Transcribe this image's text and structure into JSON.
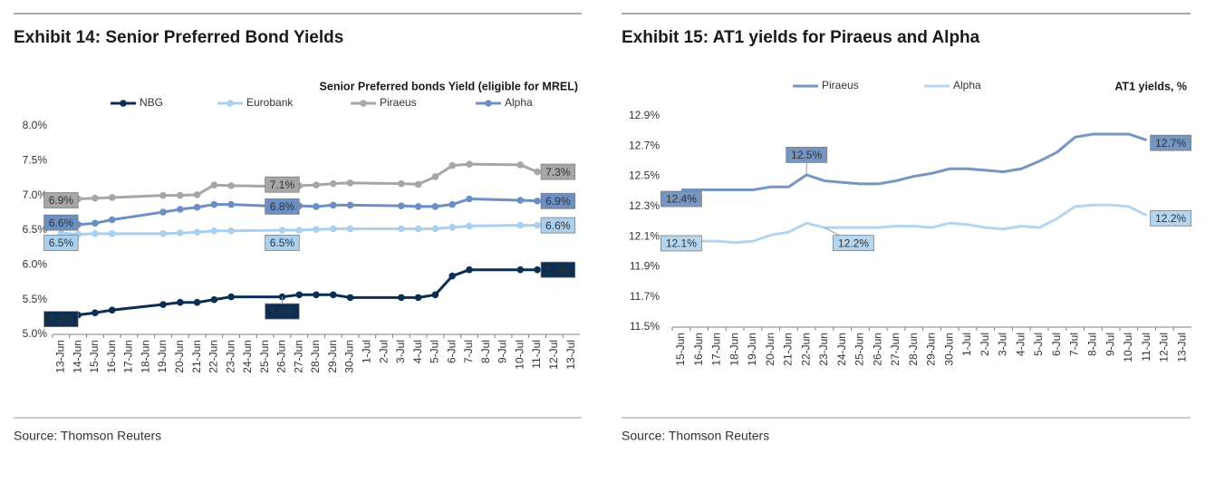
{
  "chart_data": [
    {
      "type": "line",
      "title": "Exhibit 14: Senior Preferred Bond Yields",
      "subtitle": "Senior Preferred bonds Yield (eligible for MREL)",
      "source": "Source: Thomson Reuters",
      "markers": true,
      "x": [
        "13-Jun",
        "14-Jun",
        "15-Jun",
        "16-Jun",
        "19-Jun",
        "20-Jun",
        "21-Jun",
        "22-Jun",
        "23-Jun",
        "26-Jun",
        "27-Jun",
        "28-Jun",
        "29-Jun",
        "30-Jun",
        "3-Jul",
        "4-Jul",
        "5-Jul",
        "6-Jul",
        "7-Jul",
        "10-Jul",
        "11-Jul"
      ],
      "xticks": [
        "13-Jun",
        "14-Jun",
        "15-Jun",
        "16-Jun",
        "17-Jun",
        "18-Jun",
        "19-Jun",
        "20-Jun",
        "21-Jun",
        "22-Jun",
        "23-Jun",
        "24-Jun",
        "25-Jun",
        "26-Jun",
        "27-Jun",
        "28-Jun",
        "29-Jun",
        "30-Jun",
        "1-Jul",
        "2-Jul",
        "3-Jul",
        "4-Jul",
        "5-Jul",
        "6-Jul",
        "7-Jul",
        "8-Jul",
        "9-Jul",
        "10-Jul",
        "11-Jul",
        "12-Jul",
        "13-Jul"
      ],
      "ylim": [
        5,
        8
      ],
      "yticks": [
        {
          "value": 5,
          "label": "5.0%"
        },
        {
          "value": 5.5,
          "label": "5.5%"
        },
        {
          "value": 6,
          "label": "6.0%"
        },
        {
          "value": 6.5,
          "label": "6.5%"
        },
        {
          "value": 7,
          "label": "7.0%"
        },
        {
          "value": 7.5,
          "label": "7.5%"
        },
        {
          "value": 8,
          "label": "8.0%"
        }
      ],
      "series": [
        {
          "name": "NBG",
          "color": "#0b2e52",
          "label_text": "#ffffff",
          "values": [
            5.22,
            5.28,
            5.31,
            5.35,
            5.43,
            5.46,
            5.46,
            5.5,
            5.54,
            5.54,
            5.57,
            5.57,
            5.57,
            5.53,
            5.53,
            5.53,
            5.57,
            5.84,
            5.93,
            5.93,
            5.93
          ],
          "value_labels": [
            "5.2%",
            null,
            null,
            null,
            null,
            null,
            null,
            null,
            null,
            "5.5%",
            null,
            null,
            null,
            null,
            null,
            null,
            null,
            null,
            null,
            null,
            "5.9%"
          ]
        },
        {
          "name": "Eurobank",
          "color": "#a9d0ef",
          "label_text": "#1a1a1a",
          "values": [
            6.46,
            6.44,
            6.45,
            6.45,
            6.45,
            6.46,
            6.47,
            6.49,
            6.49,
            6.5,
            6.5,
            6.51,
            6.52,
            6.52,
            6.52,
            6.52,
            6.52,
            6.54,
            6.56,
            6.57,
            6.57
          ],
          "value_labels": [
            "6.5%",
            null,
            null,
            null,
            null,
            null,
            null,
            null,
            null,
            "6.5%",
            null,
            null,
            null,
            null,
            null,
            null,
            null,
            null,
            null,
            null,
            "6.6%"
          ]
        },
        {
          "name": "Piraeus",
          "color": "#a6a6a6",
          "label_text": "#ffffff",
          "values": [
            6.93,
            6.95,
            6.96,
            6.97,
            7.0,
            7.0,
            7.01,
            7.15,
            7.14,
            7.13,
            7.14,
            7.15,
            7.17,
            7.18,
            7.17,
            7.16,
            7.27,
            7.43,
            7.45,
            7.44,
            7.34
          ],
          "value_labels": [
            "6.9%",
            null,
            null,
            null,
            null,
            null,
            null,
            null,
            null,
            "7.1%",
            null,
            null,
            null,
            null,
            null,
            null,
            null,
            null,
            null,
            null,
            "7.3%"
          ]
        },
        {
          "name": "Alpha",
          "color": "#6b8fc4",
          "label_text": "#ffffff",
          "values": [
            6.57,
            6.58,
            6.6,
            6.65,
            6.76,
            6.8,
            6.83,
            6.87,
            6.87,
            6.84,
            6.85,
            6.84,
            6.86,
            6.86,
            6.85,
            6.84,
            6.84,
            6.87,
            6.95,
            6.93,
            6.92
          ],
          "value_labels": [
            "6.6%",
            null,
            null,
            null,
            null,
            null,
            null,
            null,
            null,
            "6.8%",
            null,
            null,
            null,
            null,
            null,
            null,
            null,
            null,
            null,
            null,
            "6.9%"
          ]
        }
      ]
    },
    {
      "type": "line",
      "title": "Exhibit 15: AT1 yields for Piraeus and Alpha",
      "subtitle": "AT1 yields, %",
      "source": "Source: Thomson Reuters",
      "markers": false,
      "categories": [
        "15-Jun",
        "16-Jun",
        "17-Jun",
        "18-Jun",
        "19-Jun",
        "20-Jun",
        "21-Jun",
        "22-Jun",
        "23-Jun",
        "24-Jun",
        "25-Jun",
        "26-Jun",
        "27-Jun",
        "28-Jun",
        "29-Jun",
        "30-Jun",
        "1-Jul",
        "2-Jul",
        "3-Jul",
        "4-Jul",
        "5-Jul",
        "6-Jul",
        "7-Jul",
        "8-Jul",
        "9-Jul",
        "10-Jul",
        "11-Jul",
        "12-Jul",
        "13-Jul"
      ],
      "ylim": [
        11.5,
        12.9
      ],
      "yticks": [
        {
          "value": 11.5,
          "label": "11.5%"
        },
        {
          "value": 11.7,
          "label": "11.7%"
        },
        {
          "value": 11.9,
          "label": "11.9%"
        },
        {
          "value": 12.1,
          "label": "12.1%"
        },
        {
          "value": 12.3,
          "label": "12.3%"
        },
        {
          "value": 12.5,
          "label": "12.5%"
        },
        {
          "value": 12.7,
          "label": "12.7%"
        },
        {
          "value": 12.9,
          "label": "12.9%"
        }
      ],
      "series": [
        {
          "name": "Piraeus",
          "color": "#7496c0",
          "label_text": "#ffffff",
          "values": [
            12.41,
            12.41,
            12.41,
            12.41,
            12.41,
            12.43,
            12.43,
            12.51,
            12.47,
            12.46,
            12.45,
            12.45,
            12.47,
            12.5,
            12.52,
            12.55,
            12.55,
            12.54,
            12.53,
            12.55,
            12.6,
            12.66,
            12.76,
            12.78,
            12.78,
            12.78,
            12.74,
            null,
            null
          ],
          "value_labels": [
            "12.4%",
            null,
            null,
            null,
            null,
            null,
            null,
            "12.5%",
            null,
            null,
            null,
            null,
            null,
            null,
            null,
            null,
            null,
            null,
            null,
            null,
            null,
            null,
            null,
            null,
            null,
            null,
            "12.7%",
            null,
            null
          ]
        },
        {
          "name": "Alpha",
          "color": "#b4d5ef",
          "label_text": "#1a1a1a",
          "values": [
            12.08,
            12.07,
            12.07,
            12.06,
            12.07,
            12.11,
            12.13,
            12.19,
            12.16,
            12.16,
            12.16,
            12.16,
            12.17,
            12.17,
            12.16,
            12.19,
            12.18,
            12.16,
            12.15,
            12.17,
            12.16,
            12.22,
            12.3,
            12.31,
            12.31,
            12.3,
            12.24,
            null,
            null
          ],
          "value_labels": [
            "12.1%",
            null,
            null,
            null,
            null,
            null,
            null,
            null,
            "12.2%",
            null,
            null,
            null,
            null,
            null,
            null,
            null,
            null,
            null,
            null,
            null,
            null,
            null,
            null,
            null,
            null,
            null,
            "12.2%",
            null,
            null
          ]
        }
      ]
    }
  ]
}
